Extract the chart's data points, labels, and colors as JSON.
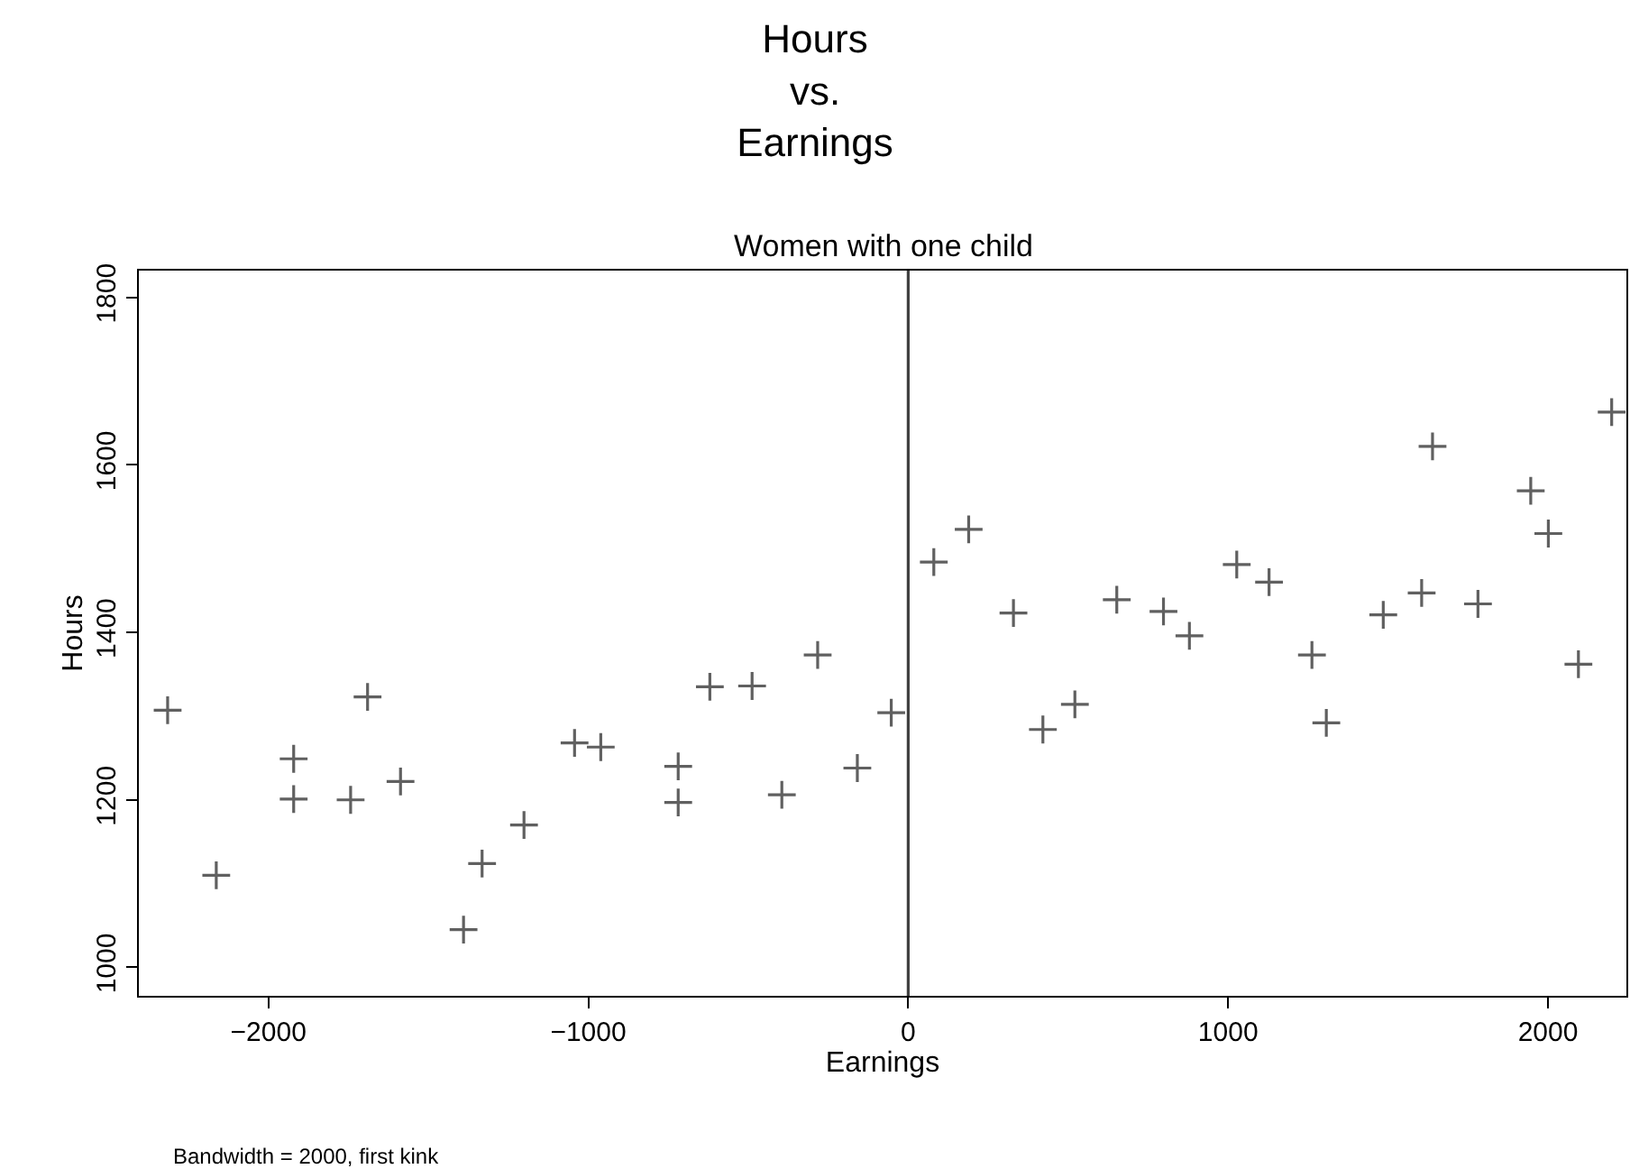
{
  "chart_data": {
    "type": "scatter",
    "title": "Hours\nvs.\nEarnings",
    "subtitle": "Women with one child",
    "xlabel": "Earnings",
    "ylabel": "Hours",
    "annotations": [
      "Bandwidth = 2000, first kink"
    ],
    "x": [
      -2315,
      -2163,
      -1921,
      -1921,
      -1743,
      -1690,
      -1587,
      -1390,
      -1332,
      -1201,
      -1043,
      -961,
      -719,
      -719,
      -620,
      -488,
      -395,
      -283,
      -159,
      -53,
      80,
      189,
      329,
      421,
      521,
      652,
      798,
      879,
      1027,
      1128,
      1262,
      1307,
      1485,
      1605,
      1639,
      1781,
      1946,
      2001,
      2095,
      2199
    ],
    "series": [
      {
        "color": "#606060",
        "values": [
          1307,
          1110,
          1249,
          1201,
          1200,
          1323,
          1222,
          1045,
          1124,
          1170,
          1268,
          1263,
          1240,
          1197,
          1335,
          1336,
          1206,
          1373,
          1238,
          1304,
          1484,
          1523,
          1423,
          1284,
          1314,
          1439,
          1425,
          1396,
          1481,
          1460,
          1373,
          1292,
          1421,
          1447,
          1622,
          1434,
          1569,
          1518,
          1362,
          1663
        ]
      }
    ],
    "xlim": [
      -2405,
      2245
    ],
    "ylim": [
      966,
      1832
    ],
    "xticks": [
      -2000,
      -1000,
      0,
      1000,
      2000
    ],
    "yticks": [
      1000,
      1200,
      1400,
      1600,
      1800
    ],
    "ref_lines": [
      {
        "axis": "x",
        "value": 0,
        "color": "#404040"
      }
    ],
    "marker": "cross",
    "grid": false
  }
}
